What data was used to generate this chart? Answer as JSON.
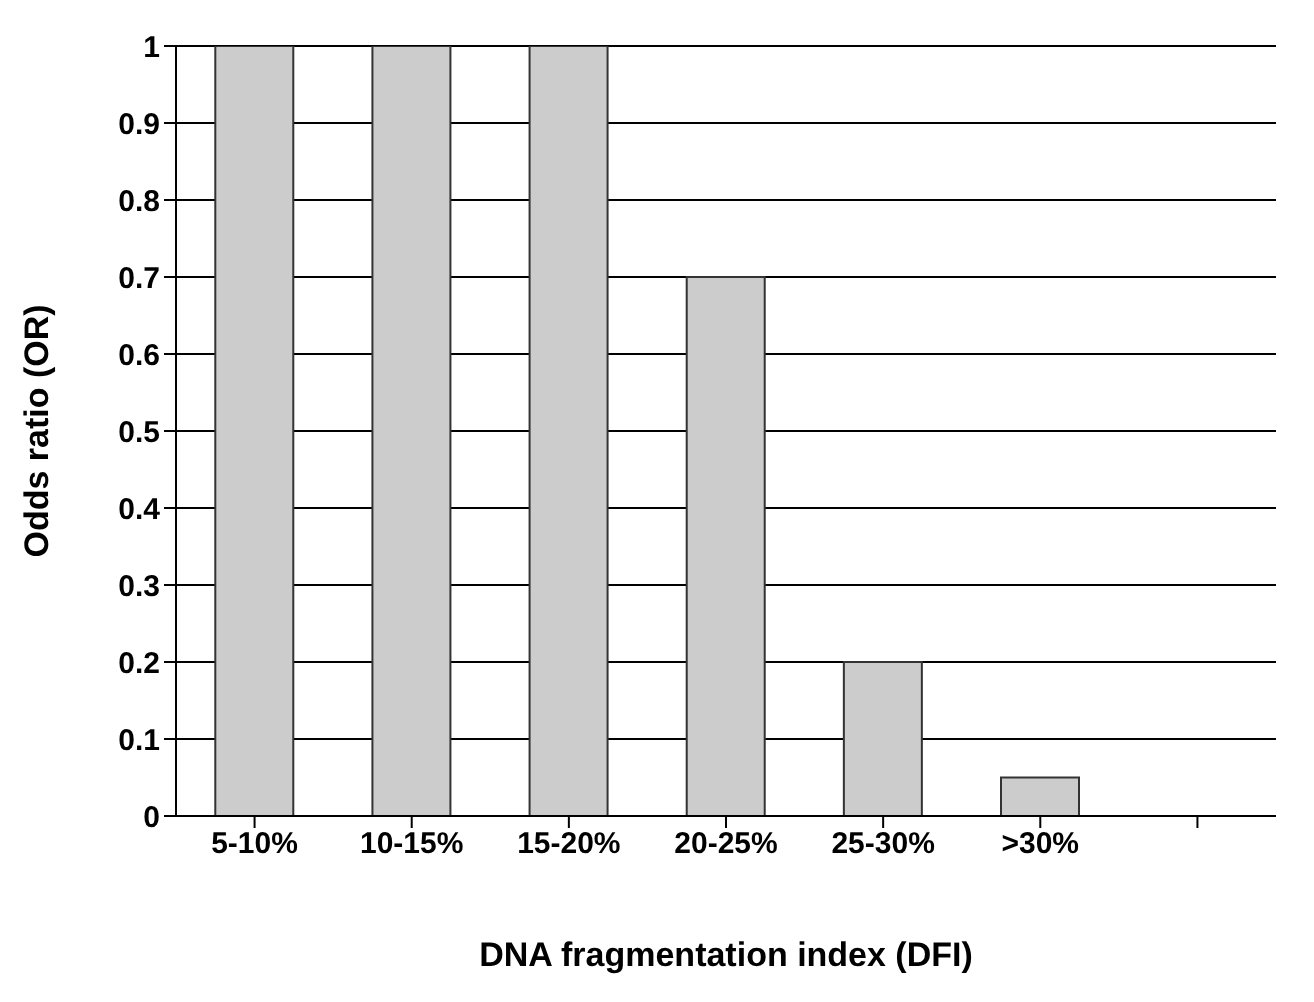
{
  "chart_data": {
    "type": "bar",
    "xlabel": "DNA fragmentation index (DFI)",
    "ylabel": "Odds ratio (OR)",
    "categories": [
      "5-10%",
      "10-15%",
      "15-20%",
      "20-25%",
      "25-30%",
      ">30%",
      null
    ],
    "values": [
      1,
      1,
      1,
      0.7,
      0.2,
      0.05,
      null
    ],
    "color": "#cccccc",
    "ylim": [
      0,
      1
    ],
    "yticks": [
      0,
      0.1,
      0.2,
      0.3,
      0.4,
      0.5,
      0.6,
      0.7,
      0.8,
      0.9,
      1
    ],
    "grid": "y"
  }
}
